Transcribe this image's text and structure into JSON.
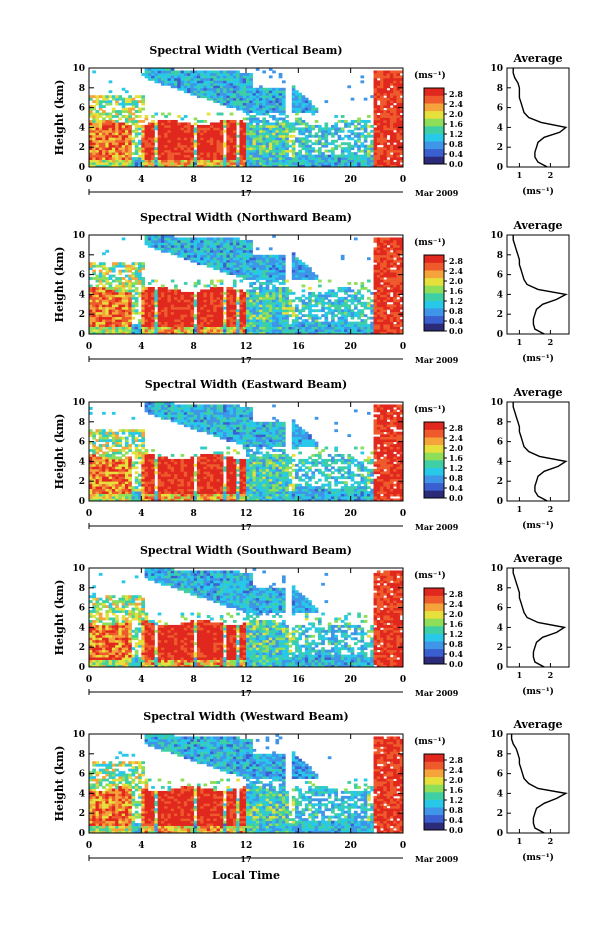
{
  "figure": {
    "shared": {
      "ylabel": "Height (km)",
      "xticks": [
        "0",
        "4",
        "8",
        "12",
        "16",
        "20",
        "0"
      ],
      "day_label": "17",
      "month_label": "Mar 2009",
      "xlabel": "Local Time",
      "cbar_unit": "(ms⁻¹)",
      "cbar_ticks": [
        "2.8",
        "2.4",
        "2.0",
        "1.6",
        "1.2",
        "0.8",
        "0.4",
        "0.0"
      ],
      "avg_title": "Average",
      "avg_xlabel": "(ms⁻¹)",
      "yticks": [
        "10",
        "8",
        "6",
        "4",
        "2",
        "0"
      ]
    },
    "colors": [
      "#2b2b7a",
      "#3a5fd0",
      "#3f95e8",
      "#28c8e8",
      "#3ecfa4",
      "#8ede5a",
      "#e6e03c",
      "#f4a43a",
      "#ef5a2c",
      "#e0281e"
    ]
  },
  "chart_data": [
    {
      "type": "heatmap",
      "title": "Spectral Width (Vertical Beam)",
      "xlabel": "Local Time",
      "ylabel": "Height (km)",
      "xlim": [
        0,
        24
      ],
      "ylim": [
        0,
        10
      ],
      "clim": [
        0.0,
        2.9
      ],
      "regime_heights_km": {
        "low_cloud_top": 4.5,
        "high_layer_bottom": 6.0,
        "high_layer_top": 10.0
      },
      "average_profile": {
        "xticks": [
          "1",
          "2"
        ],
        "xlim": [
          0.6,
          2.6
        ],
        "height_km": [
          0,
          0.5,
          1,
          1.5,
          2,
          2.5,
          3,
          3.5,
          4,
          4.5,
          5,
          5.5,
          6,
          6.5,
          7,
          7.5,
          8,
          8.5,
          9,
          9.5,
          10
        ],
        "width_ms": [
          1.9,
          1.6,
          1.5,
          1.5,
          1.55,
          1.6,
          1.8,
          2.3,
          2.5,
          1.7,
          1.3,
          1.15,
          1.1,
          1.05,
          1.0,
          1.0,
          1.0,
          0.95,
          0.85,
          0.8,
          0.8
        ]
      }
    },
    {
      "type": "heatmap",
      "title": "Spectral Width (Northward Beam)",
      "xlabel": "Local Time",
      "ylabel": "Height (km)",
      "xlim": [
        0,
        24
      ],
      "ylim": [
        0,
        10
      ],
      "clim": [
        0.0,
        2.9
      ],
      "regime_heights_km": {
        "low_cloud_top": 4.5,
        "high_layer_bottom": 6.0,
        "high_layer_top": 10.0
      },
      "average_profile": {
        "xticks": [
          "1",
          "2"
        ],
        "xlim": [
          0.6,
          2.6
        ],
        "height_km": [
          0,
          0.5,
          1,
          1.5,
          2,
          2.5,
          3,
          3.5,
          4,
          4.5,
          5,
          5.5,
          6,
          6.5,
          7,
          7.5,
          8,
          8.5,
          9,
          9.5,
          10
        ],
        "width_ms": [
          1.8,
          1.5,
          1.45,
          1.45,
          1.5,
          1.55,
          1.75,
          2.2,
          2.5,
          1.6,
          1.25,
          1.15,
          1.1,
          1.05,
          1.0,
          1.0,
          0.95,
          0.9,
          0.85,
          0.8,
          0.8
        ]
      }
    },
    {
      "type": "heatmap",
      "title": "Spectral Width (Eastward Beam)",
      "xlabel": "Local Time",
      "ylabel": "Height (km)",
      "xlim": [
        0,
        24
      ],
      "ylim": [
        0,
        10
      ],
      "clim": [
        0.0,
        2.9
      ],
      "regime_heights_km": {
        "low_cloud_top": 4.5,
        "high_layer_bottom": 6.0,
        "high_layer_top": 10.0
      },
      "average_profile": {
        "xticks": [
          "1",
          "2"
        ],
        "xlim": [
          0.6,
          2.6
        ],
        "height_km": [
          0,
          0.5,
          1,
          1.5,
          2,
          2.5,
          3,
          3.5,
          4,
          4.5,
          5,
          5.5,
          6,
          6.5,
          7,
          7.5,
          8,
          8.5,
          9,
          9.5,
          10
        ],
        "width_ms": [
          1.9,
          1.6,
          1.5,
          1.5,
          1.55,
          1.6,
          1.8,
          2.25,
          2.5,
          1.65,
          1.3,
          1.15,
          1.1,
          1.05,
          1.0,
          1.0,
          0.95,
          0.9,
          0.85,
          0.8,
          0.8
        ]
      }
    },
    {
      "type": "heatmap",
      "title": "Spectral Width (Southward Beam)",
      "xlabel": "Local Time",
      "ylabel": "Height (km)",
      "xlim": [
        0,
        24
      ],
      "ylim": [
        0,
        10
      ],
      "clim": [
        0.0,
        2.9
      ],
      "regime_heights_km": {
        "low_cloud_top": 4.5,
        "high_layer_bottom": 6.0,
        "high_layer_top": 10.0
      },
      "average_profile": {
        "xticks": [
          "1",
          "2"
        ],
        "xlim": [
          0.6,
          2.6
        ],
        "height_km": [
          0,
          0.5,
          1,
          1.5,
          2,
          2.5,
          3,
          3.5,
          4,
          4.5,
          5,
          5.5,
          6,
          6.5,
          7,
          7.5,
          8,
          8.5,
          9,
          9.5,
          10
        ],
        "width_ms": [
          1.8,
          1.5,
          1.45,
          1.45,
          1.5,
          1.55,
          1.75,
          2.2,
          2.45,
          1.6,
          1.25,
          1.15,
          1.1,
          1.05,
          1.0,
          1.0,
          0.95,
          0.9,
          0.85,
          0.8,
          0.8
        ]
      }
    },
    {
      "type": "heatmap",
      "title": "Spectral Width (Westward Beam)",
      "xlabel": "Local Time",
      "ylabel": "Height (km)",
      "xlim": [
        0,
        24
      ],
      "ylim": [
        0,
        10
      ],
      "clim": [
        0.0,
        2.9
      ],
      "regime_heights_km": {
        "low_cloud_top": 4.5,
        "high_layer_bottom": 6.0,
        "high_layer_top": 10.0
      },
      "average_profile": {
        "xticks": [
          "1",
          "2"
        ],
        "xlim": [
          0.6,
          2.6
        ],
        "height_km": [
          0,
          0.5,
          1,
          1.5,
          2,
          2.5,
          3,
          3.5,
          4,
          4.5,
          5,
          5.5,
          6,
          6.5,
          7,
          7.5,
          8,
          8.5,
          9,
          9.5,
          10
        ],
        "width_ms": [
          1.8,
          1.5,
          1.45,
          1.45,
          1.5,
          1.55,
          1.8,
          2.2,
          2.5,
          1.6,
          1.3,
          1.15,
          1.1,
          1.05,
          1.0,
          1.0,
          0.95,
          0.9,
          0.8,
          0.75,
          0.75
        ]
      }
    }
  ]
}
